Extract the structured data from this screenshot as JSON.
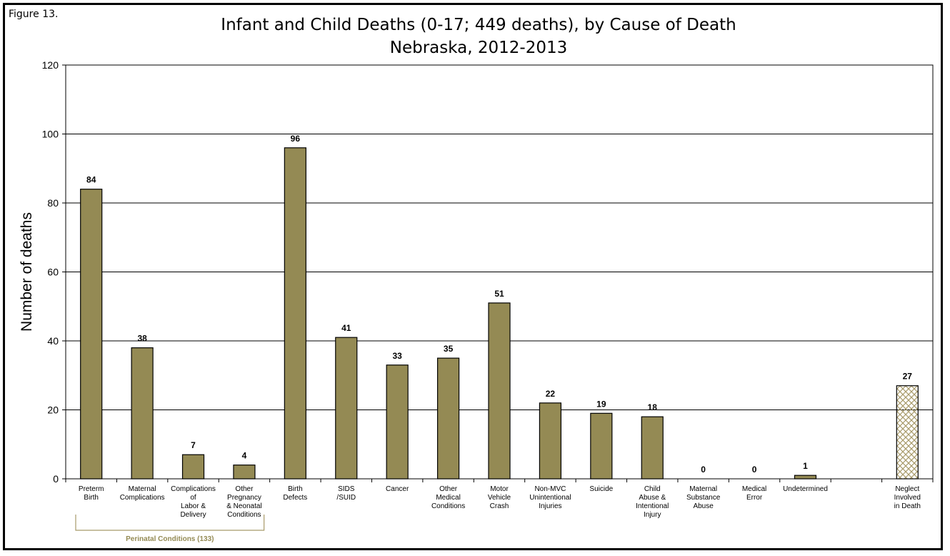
{
  "figure_label": "Figure 13.",
  "chart_data": {
    "type": "bar",
    "title": "Infant and Child Deaths (0-17; 449 deaths), by Cause of Death",
    "subtitle": "Nebraska, 2012-2013",
    "ylabel": "Number of deaths",
    "xlabel": "",
    "ylim": [
      0,
      120
    ],
    "yticks": [
      0,
      20,
      40,
      60,
      80,
      100,
      120
    ],
    "grid": true,
    "legend": "none",
    "categories": [
      [
        "Preterm",
        "Birth"
      ],
      [
        "Maternal",
        "Complications"
      ],
      [
        "Complications",
        "of",
        "Labor &",
        "Delivery"
      ],
      [
        "Other",
        "Pregnancy",
        "& Neonatal",
        "Conditions"
      ],
      [
        "Birth",
        "Defects"
      ],
      [
        "SIDS",
        "/SUID"
      ],
      [
        "Cancer"
      ],
      [
        "Other",
        "Medical",
        "Conditions"
      ],
      [
        "Motor",
        "Vehicle",
        "Crash"
      ],
      [
        "Non-MVC",
        "Unintentional",
        "Injuries"
      ],
      [
        "Suicide"
      ],
      [
        "Child",
        "Abuse &",
        "Intentional",
        "Injury"
      ],
      [
        "Maternal",
        "Substance",
        "Abuse"
      ],
      [
        "Medical",
        "Error"
      ],
      [
        "Undetermined"
      ],
      [
        "Neglect",
        "Involved",
        "in Death"
      ]
    ],
    "values": [
      84,
      38,
      7,
      4,
      96,
      41,
      33,
      35,
      51,
      22,
      19,
      18,
      0,
      0,
      1,
      27
    ],
    "data_labels": [
      "84",
      "38",
      "7",
      "4",
      "96",
      "41",
      "33",
      "35",
      "51",
      "22",
      "19",
      "18",
      "0",
      "0",
      "1",
      "27"
    ],
    "hatched_categories": [
      15
    ],
    "group_annotation": {
      "label": "Perinatal Conditions (133)",
      "spans_categories": [
        0,
        3
      ]
    },
    "colors": {
      "bar_fill": "#948A54",
      "hatch_stroke": "#A89A6A",
      "group_label": "#948A54",
      "bracket": "#A89A6A"
    }
  }
}
